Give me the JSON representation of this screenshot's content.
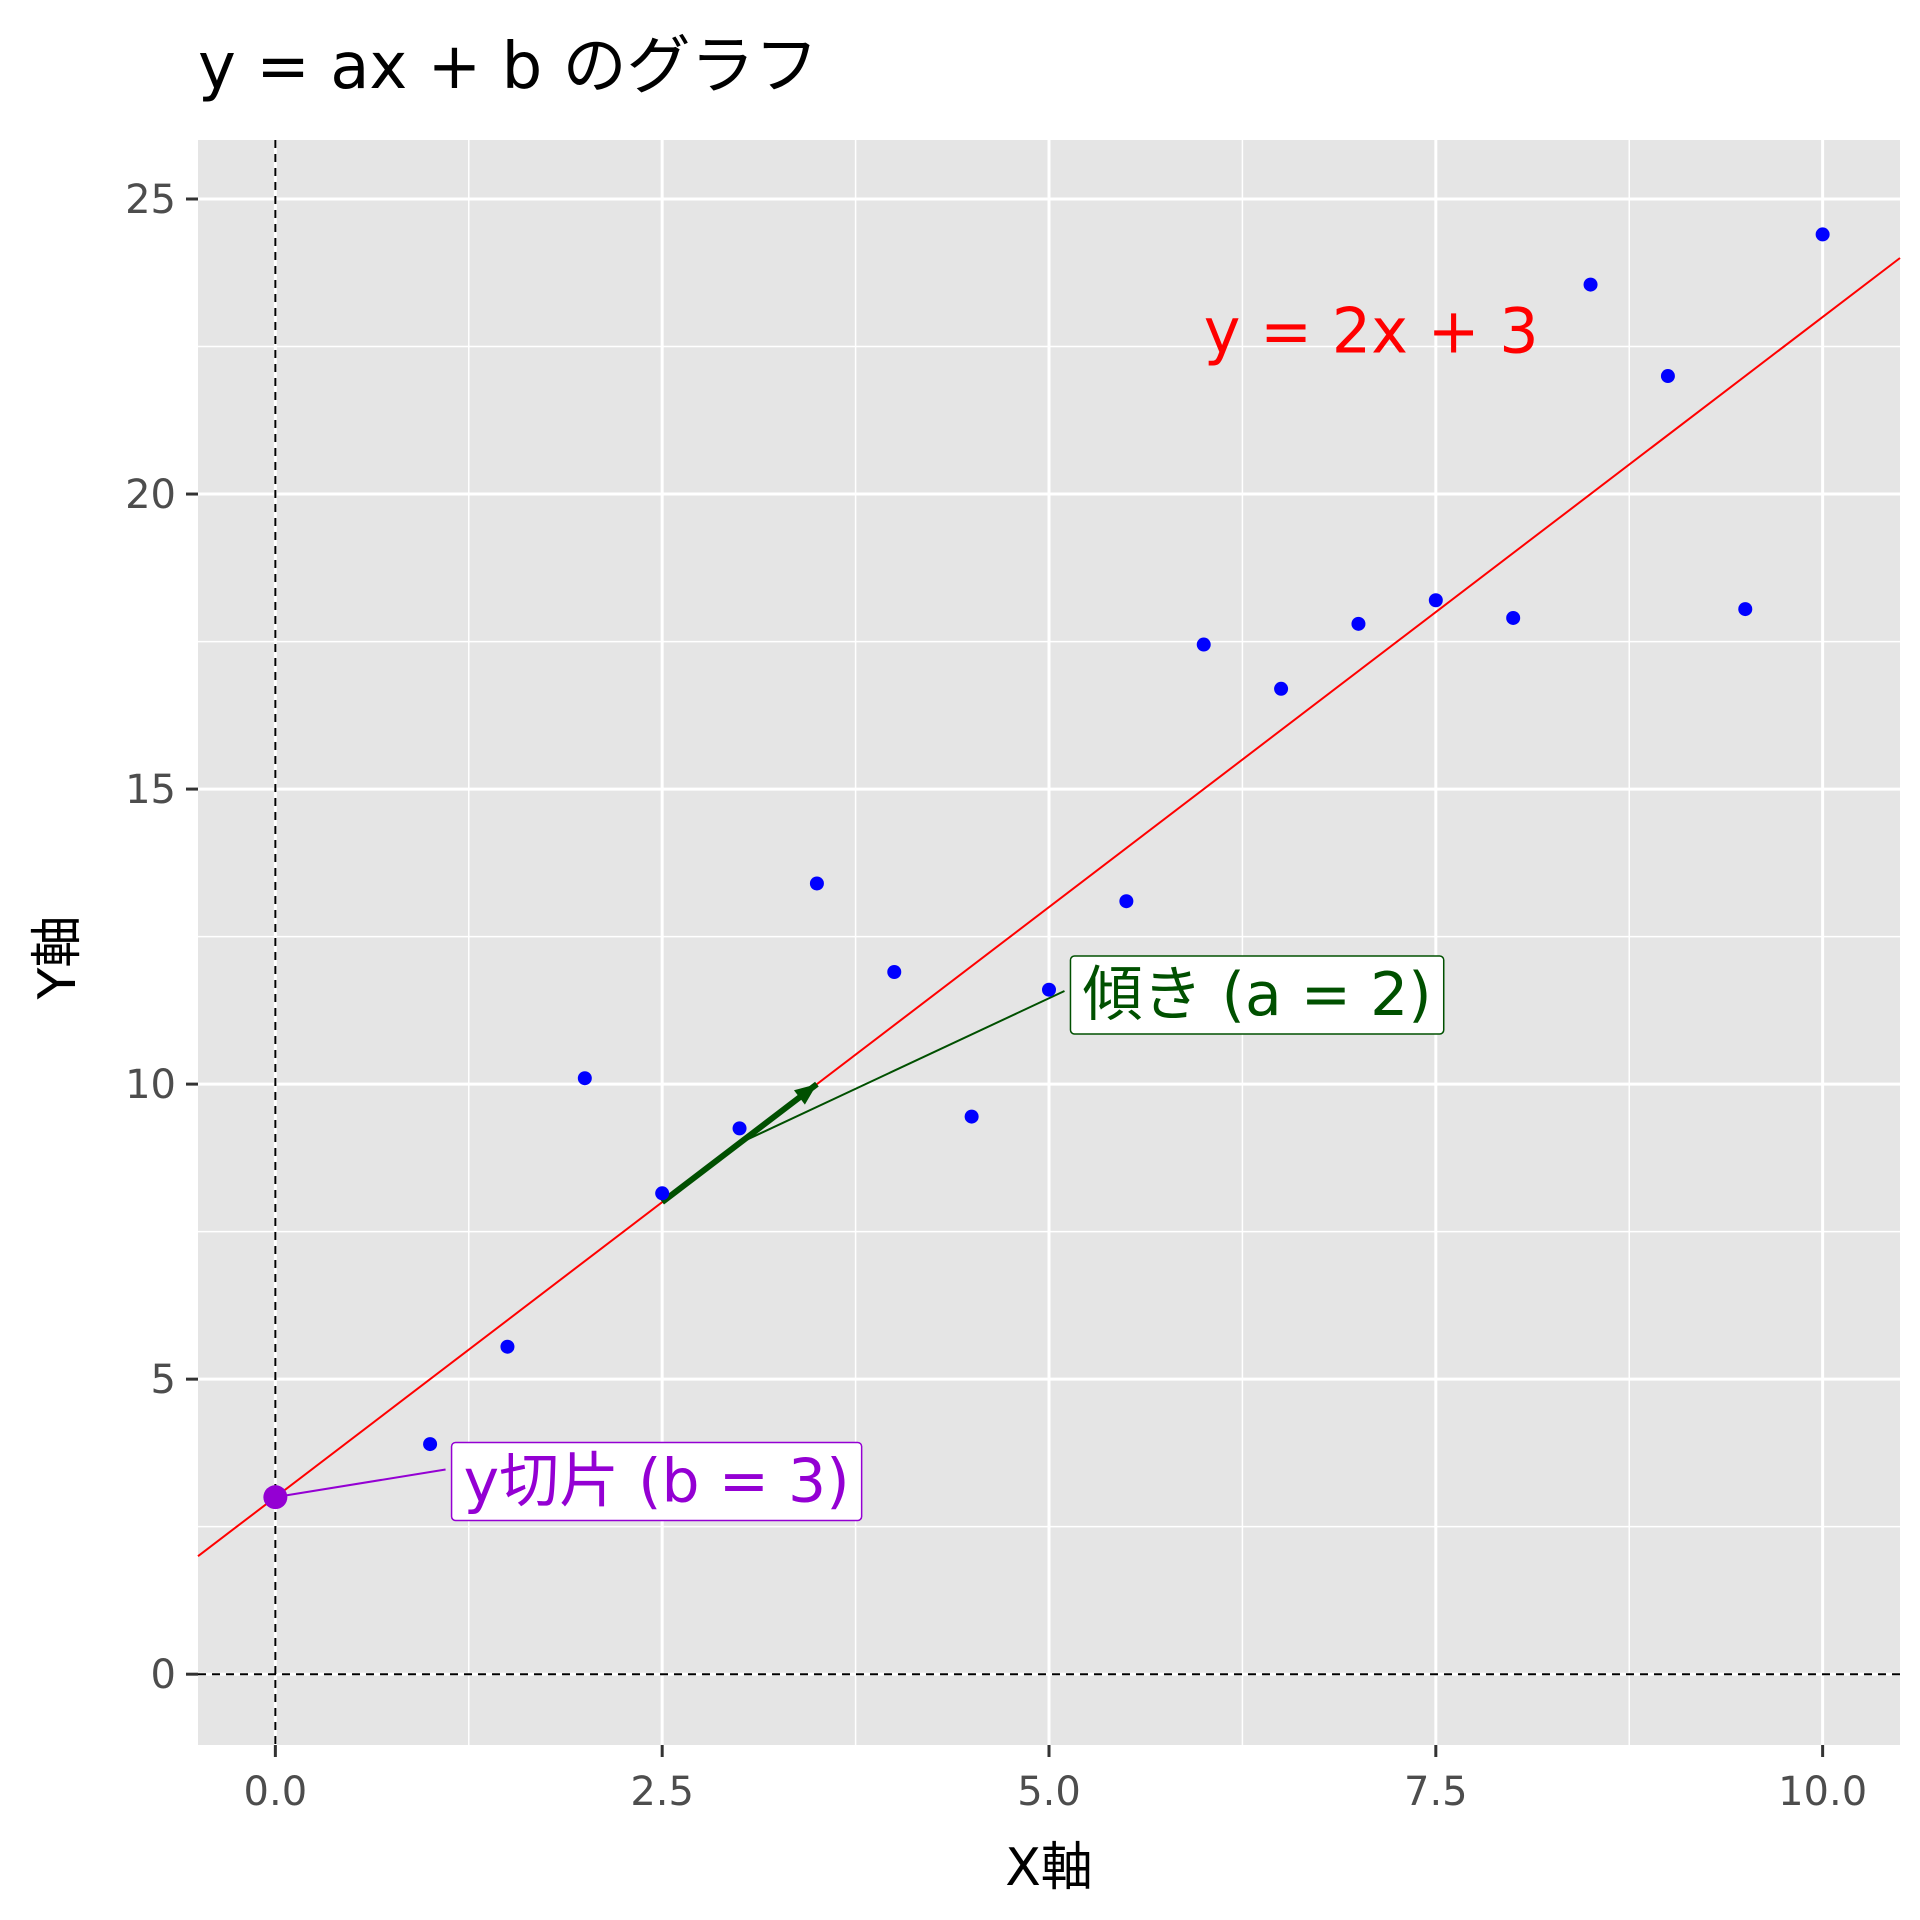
{
  "title": "y = ax + b のグラフ",
  "chart_data": {
    "type": "scatter",
    "title": "y = ax + b のグラフ",
    "xlabel": "X軸",
    "ylabel": "Y軸",
    "xlim": [
      -0.5,
      10.5
    ],
    "ylim": [
      -1.2,
      26.0
    ],
    "x_ticks": [
      0,
      2.5,
      5,
      7.5,
      10
    ],
    "x_tick_labels": [
      "0.0",
      "2.5",
      "5.0",
      "7.5",
      "10.0"
    ],
    "y_ticks": [
      0,
      5,
      10,
      15,
      20,
      25
    ],
    "y_tick_labels": [
      "0",
      "5",
      "10",
      "15",
      "20",
      "25"
    ],
    "grid": true,
    "background": "#e5e5e5",
    "points": {
      "color": "#0000ff",
      "x": [
        1.0,
        1.5,
        2.0,
        2.5,
        3.0,
        3.5,
        4.0,
        4.5,
        5.0,
        5.5,
        6.0,
        6.5,
        7.0,
        7.5,
        8.0,
        8.5,
        9.0,
        9.5,
        10.0
      ],
      "y": [
        3.9,
        5.55,
        10.1,
        8.15,
        9.25,
        13.4,
        11.9,
        9.45,
        11.6,
        13.1,
        17.45,
        16.7,
        17.8,
        18.2,
        17.9,
        23.55,
        22.0,
        18.05,
        24.4
      ]
    },
    "line": {
      "slope": 2,
      "intercept": 3,
      "color": "#ff0000",
      "label": "y = 2x + 3",
      "label_x": 6.0,
      "label_y": 22.4
    },
    "reference_lines": {
      "x": 0,
      "y": 0,
      "style": "dashed",
      "color": "#000000"
    },
    "intercept_annotation": {
      "text": "y切片 (b = 3)",
      "color": "#9400d3",
      "point": [
        0,
        3
      ],
      "label_anchor": [
        1.1,
        3.3
      ]
    },
    "slope_annotation": {
      "text": "傾き (a = 2)",
      "color": "#005000",
      "arrow_from": [
        2.5,
        8
      ],
      "arrow_to": [
        3.5,
        10
      ],
      "leader_from": [
        3.0,
        9.0
      ],
      "label_anchor": [
        5.1,
        10.9
      ]
    }
  }
}
